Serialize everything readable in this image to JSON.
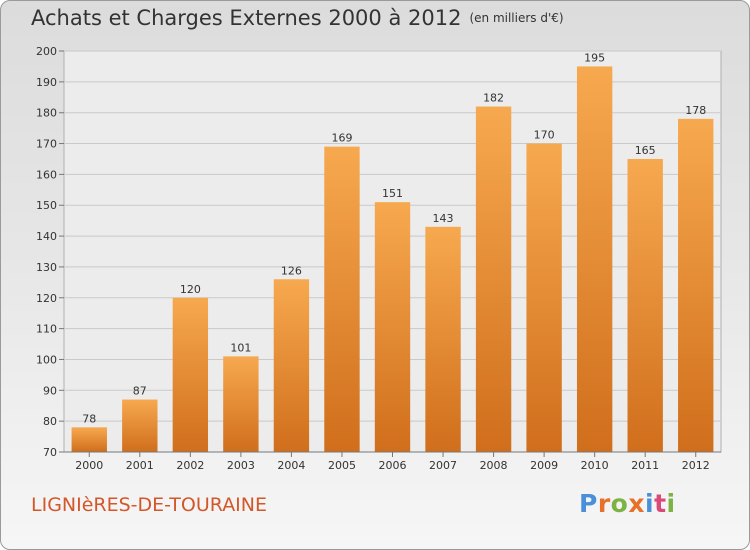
{
  "header": {
    "title": "Achats et Charges Externes 2000 à 2012",
    "subtitle": "(en milliers d'€)"
  },
  "footer": {
    "commune": "LIGNIèRES-DE-TOURAINE",
    "logo": {
      "text": "Proxiti",
      "colors": [
        "#4a90d9",
        "#e8712a",
        "#7cb342",
        "#e8712a",
        "#4a90d9",
        "#d94a7a",
        "#7cb342"
      ]
    }
  },
  "colors": {
    "bar_light": "#f7a94f",
    "bar_dark": "#d06e1c",
    "grid": "#c9c9c9",
    "commune_text": "#d4572a"
  },
  "chart_data": {
    "type": "bar",
    "title": "Achats et Charges Externes 2000 à 2012",
    "subtitle": "(en milliers d'€)",
    "categories": [
      "2000",
      "2001",
      "2002",
      "2003",
      "2004",
      "2005",
      "2006",
      "2007",
      "2008",
      "2009",
      "2010",
      "2011",
      "2012"
    ],
    "values": [
      78,
      87,
      120,
      101,
      126,
      169,
      151,
      143,
      182,
      170,
      195,
      165,
      178
    ],
    "ylim": [
      70,
      200
    ],
    "yticks": [
      70,
      80,
      90,
      100,
      110,
      120,
      130,
      140,
      150,
      160,
      170,
      180,
      190,
      200
    ],
    "grid": true,
    "legend": "none"
  }
}
